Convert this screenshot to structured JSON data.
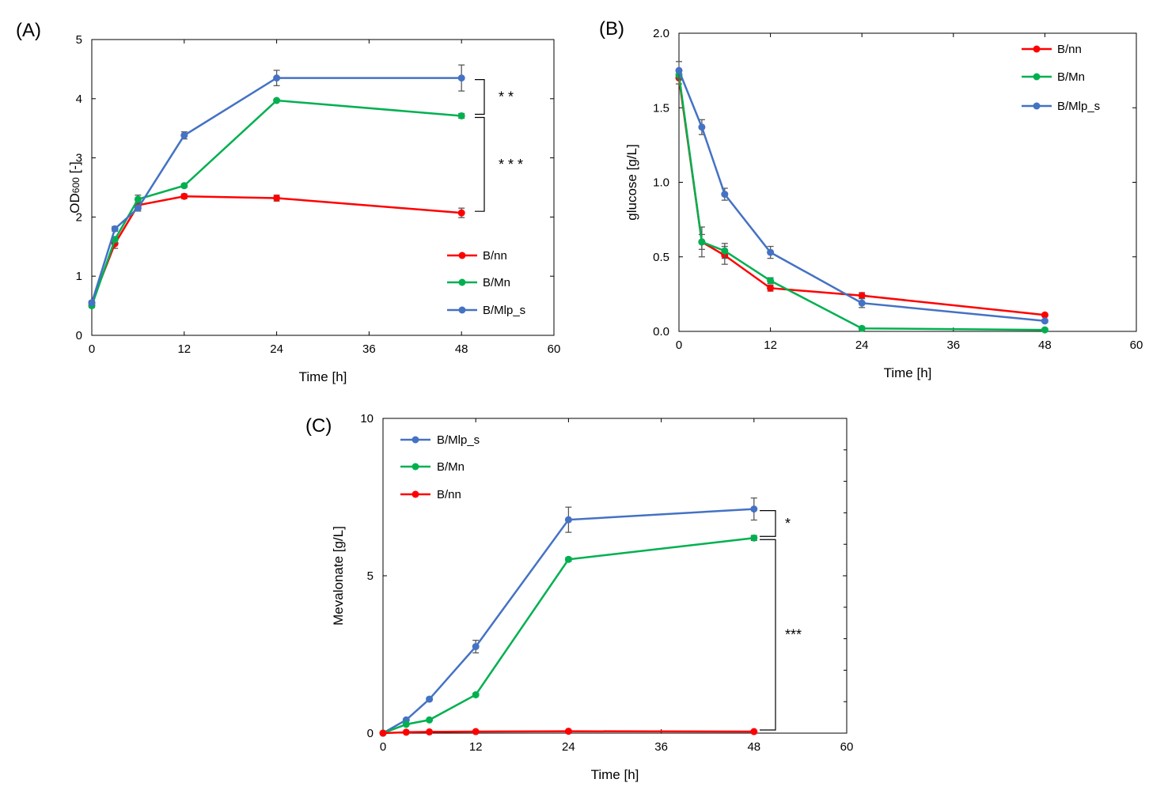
{
  "chart_data": [
    {
      "type": "line",
      "panel": "(A)",
      "xlabel": "Time [h]",
      "ylabel_main": "OD",
      "ylabel_sub": "600",
      "ylabel_tail": " [-]",
      "x": [
        0,
        3,
        6,
        12,
        24,
        48
      ],
      "xlim": [
        0,
        60
      ],
      "ylim": [
        0,
        5
      ],
      "xticks": [
        "0",
        "12",
        "24",
        "36",
        "48",
        "60"
      ],
      "yticks": [
        "0",
        "1",
        "2",
        "3",
        "4",
        "5"
      ],
      "legend_position": "bottom-right",
      "series": [
        {
          "name": "B/nn",
          "color": "#ff0000",
          "values": [
            0.55,
            1.55,
            2.2,
            2.35,
            2.32,
            2.07
          ],
          "err": [
            0.03,
            0.08,
            0.05,
            0.04,
            0.05,
            0.08
          ]
        },
        {
          "name": "B/Mn",
          "color": "#00b050",
          "values": [
            0.5,
            1.62,
            2.3,
            2.53,
            3.97,
            3.71
          ],
          "err": [
            0.03,
            0.05,
            0.07,
            0.03,
            0.02,
            0.04
          ]
        },
        {
          "name": "B/Mlp_s",
          "color": "#4472c4",
          "values": [
            0.55,
            1.8,
            2.15,
            3.38,
            4.35,
            4.35
          ],
          "err": [
            0.03,
            0.04,
            0.05,
            0.06,
            0.13,
            0.22
          ]
        }
      ],
      "significance": [
        {
          "label": "* *",
          "from": 4.35,
          "to": 3.71
        },
        {
          "label": "* * *",
          "from": 3.71,
          "to": 2.07
        }
      ]
    },
    {
      "type": "line",
      "panel": "(B)",
      "xlabel": "Time [h]",
      "ylabel": "glucose [g/L]",
      "x": [
        0,
        3,
        6,
        12,
        24,
        48
      ],
      "xlim": [
        0,
        60
      ],
      "ylim": [
        0,
        2
      ],
      "xticks": [
        "0",
        "12",
        "24",
        "36",
        "48",
        "60"
      ],
      "yticks": [
        "0.0",
        "0.5",
        "1.0",
        "1.5",
        "2.0"
      ],
      "legend_position": "top-right",
      "series": [
        {
          "name": "B/nn",
          "color": "#ff0000",
          "values": [
            1.7,
            0.6,
            0.51,
            0.29,
            0.24,
            0.11
          ],
          "err": [
            0.04,
            0.1,
            0.06,
            0.02,
            0.02,
            0.01
          ]
        },
        {
          "name": "B/Mn",
          "color": "#00b050",
          "values": [
            1.72,
            0.6,
            0.54,
            0.34,
            0.02,
            0.01
          ],
          "err": [
            0.03,
            0.05,
            0.05,
            0.02,
            0.01,
            0.01
          ]
        },
        {
          "name": "B/Mlp_s",
          "color": "#4472c4",
          "values": [
            1.75,
            1.37,
            0.92,
            0.53,
            0.19,
            0.07
          ],
          "err": [
            0.06,
            0.05,
            0.04,
            0.04,
            0.03,
            0.01
          ]
        }
      ]
    },
    {
      "type": "line",
      "panel": "(C)",
      "xlabel": "Time [h]",
      "ylabel": "Mevalonate [g/L]",
      "x": [
        0,
        3,
        6,
        12,
        24,
        48
      ],
      "xlim": [
        0,
        60
      ],
      "ylim": [
        0,
        10
      ],
      "xticks": [
        "0",
        "12",
        "24",
        "36",
        "48",
        "60"
      ],
      "yticks": [
        "0",
        "5",
        "10"
      ],
      "legend_position": "top-left",
      "series": [
        {
          "name": "B/Mlp_s",
          "color": "#4472c4",
          "values": [
            0.0,
            0.42,
            1.08,
            2.75,
            6.78,
            7.12
          ],
          "err": [
            0.0,
            0.03,
            0.05,
            0.2,
            0.4,
            0.35
          ]
        },
        {
          "name": "B/Mn",
          "color": "#00b050",
          "values": [
            0.0,
            0.28,
            0.42,
            1.22,
            5.52,
            6.2
          ],
          "err": [
            0.0,
            0.03,
            0.03,
            0.04,
            0.06,
            0.08
          ]
        },
        {
          "name": "B/nn",
          "color": "#ff0000",
          "values": [
            0.0,
            0.03,
            0.04,
            0.05,
            0.06,
            0.05
          ],
          "err": [
            0.0,
            0.0,
            0.0,
            0.0,
            0.0,
            0.0
          ]
        }
      ],
      "significance": [
        {
          "label": "*",
          "from": 7.12,
          "to": 6.2
        },
        {
          "label": "***",
          "from": 6.2,
          "to": 0.05
        }
      ]
    }
  ]
}
